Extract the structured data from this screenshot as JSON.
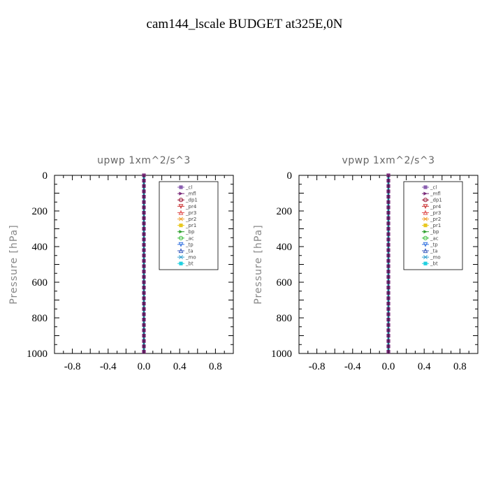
{
  "title": "cam144_lscale  BUDGET at325E,0N",
  "colors": {
    "cl": "#8a5fb0",
    "mfl": "#7a2a7a",
    "dp1": "#9b1b3a",
    "pr4": "#cc3333",
    "pr3": "#e05050",
    "pr2": "#f0a030",
    "pr1": "#e8c820",
    "bp": "#30a030",
    "ac": "#40c040",
    "tp": "#3070e0",
    "ta": "#4060c0",
    "mo": "#30a0d0",
    "bt": "#20d0e0"
  },
  "chart_data": [
    {
      "type": "line",
      "title": "upwp   1xm^2/s^3",
      "ylabel": "Pressure [hPa]",
      "xlabel": "",
      "xlim": [
        -1.0,
        1.0
      ],
      "ylim": [
        1000,
        0
      ],
      "xticks": [
        -0.8,
        -0.4,
        0.0,
        0.4,
        0.8
      ],
      "xtick_labels": [
        "-0.8",
        "-0.4",
        "0.0",
        "0.4",
        "0.8"
      ],
      "yticks": [
        0,
        200,
        400,
        600,
        800,
        1000
      ],
      "ytick_labels": [
        "0",
        "200",
        "400",
        "600",
        "800",
        "1000"
      ],
      "legend_position": "top-right",
      "y": [
        0,
        30,
        60,
        90,
        120,
        150,
        180,
        210,
        240,
        270,
        300,
        330,
        360,
        390,
        420,
        450,
        480,
        510,
        540,
        570,
        600,
        630,
        660,
        690,
        720,
        750,
        780,
        810,
        840,
        870,
        900,
        930,
        960,
        990
      ],
      "series": [
        {
          "name": "_cl",
          "key": "cl",
          "x": 0.0
        },
        {
          "name": "_mfl",
          "key": "mfl",
          "x": 0.0
        },
        {
          "name": "_dp1",
          "key": "dp1",
          "x": 0.0
        },
        {
          "name": "_pr4",
          "key": "pr4",
          "x": 0.0
        },
        {
          "name": "_pr3",
          "key": "pr3",
          "x": 0.0
        },
        {
          "name": "_pr2",
          "key": "pr2",
          "x": 0.0
        },
        {
          "name": "_pr1",
          "key": "pr1",
          "x": 0.0
        },
        {
          "name": "_bp",
          "key": "bp",
          "x": 0.0
        },
        {
          "name": "_ac",
          "key": "ac",
          "x": 0.0
        },
        {
          "name": "_tp",
          "key": "tp",
          "x": 0.0
        },
        {
          "name": "_ta",
          "key": "ta",
          "x": 0.0
        },
        {
          "name": "_mo",
          "key": "mo",
          "x": 0.0
        },
        {
          "name": "_bt",
          "key": "bt",
          "x": 0.0
        }
      ]
    },
    {
      "type": "line",
      "title": "vpwp   1xm^2/s^3",
      "ylabel": "Pressure [hPa]",
      "xlabel": "",
      "xlim": [
        -1.0,
        1.0
      ],
      "ylim": [
        1000,
        0
      ],
      "xticks": [
        -0.8,
        -0.4,
        0.0,
        0.4,
        0.8
      ],
      "xtick_labels": [
        "-0.8",
        "-0.4",
        "0.0",
        "0.4",
        "0.8"
      ],
      "yticks": [
        0,
        200,
        400,
        600,
        800,
        1000
      ],
      "ytick_labels": [
        "0",
        "200",
        "400",
        "600",
        "800",
        "1000"
      ],
      "legend_position": "top-right",
      "y": [
        0,
        30,
        60,
        90,
        120,
        150,
        180,
        210,
        240,
        270,
        300,
        330,
        360,
        390,
        420,
        450,
        480,
        510,
        540,
        570,
        600,
        630,
        660,
        690,
        720,
        750,
        780,
        810,
        840,
        870,
        900,
        930,
        960,
        990
      ],
      "series": [
        {
          "name": "_cl",
          "key": "cl",
          "x": 0.0
        },
        {
          "name": "_mfl",
          "key": "mfl",
          "x": 0.0
        },
        {
          "name": "_dp1",
          "key": "dp1",
          "x": 0.0
        },
        {
          "name": "_pr4",
          "key": "pr4",
          "x": 0.0
        },
        {
          "name": "_pr3",
          "key": "pr3",
          "x": 0.0
        },
        {
          "name": "_pr2",
          "key": "pr2",
          "x": 0.0
        },
        {
          "name": "_pr1",
          "key": "pr1",
          "x": 0.0
        },
        {
          "name": "_bp",
          "key": "bp",
          "x": 0.0
        },
        {
          "name": "_ac",
          "key": "ac",
          "x": 0.0
        },
        {
          "name": "_tp",
          "key": "tp",
          "x": 0.0
        },
        {
          "name": "_ta",
          "key": "ta",
          "x": 0.0
        },
        {
          "name": "_mo",
          "key": "mo",
          "x": 0.0
        },
        {
          "name": "_bt",
          "key": "bt",
          "x": 0.0
        }
      ]
    }
  ]
}
